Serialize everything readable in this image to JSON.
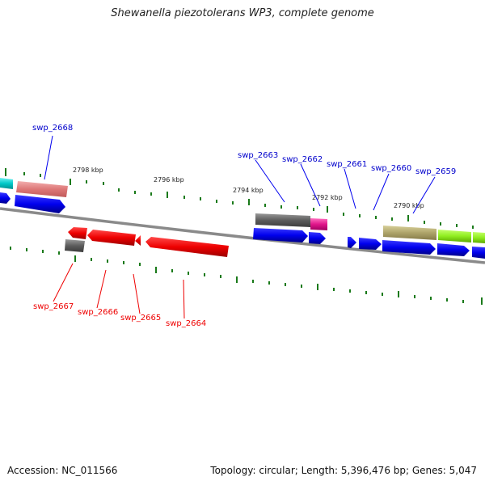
{
  "title": "Shewanella piezotolerans WP3, complete genome",
  "footer": {
    "accession": "Accession: NC_011566",
    "stats": "Topology: circular; Length: 5,396,476 bp; Genes: 5,047"
  },
  "ticks": [
    "2798 kbp",
    "2796 kbp",
    "2794 kbp",
    "2792 kbp",
    "2790 kbp"
  ],
  "gene_labels_forward": [
    "swp_2668",
    "swp_2663",
    "swp_2662",
    "swp_2661",
    "swp_2660",
    "swp_2659"
  ],
  "gene_labels_reverse": [
    "swp_2667",
    "swp_2666",
    "swp_2665",
    "swp_2664"
  ],
  "colors": {
    "forward": "#0000ee",
    "reverse": "#ee0000",
    "backbone": "#808080",
    "tick": "#1a7a1a"
  }
}
